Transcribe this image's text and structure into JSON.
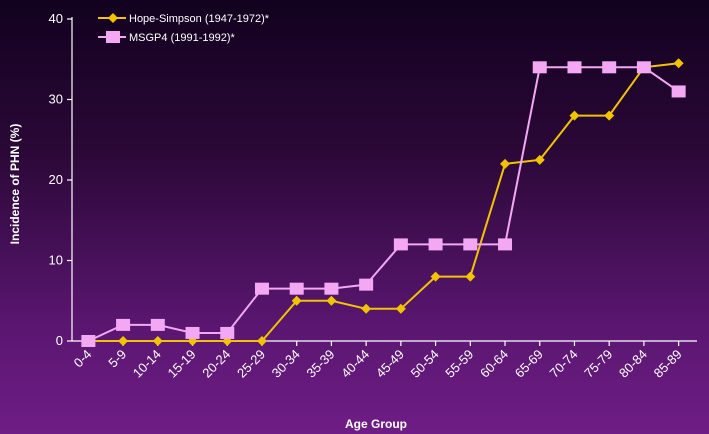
{
  "chart_data": {
    "type": "line",
    "xlabel": "Age Group",
    "ylabel": "Incidence of PHN (%)",
    "ylim": [
      0,
      40
    ],
    "yticks": [
      0,
      10,
      20,
      30,
      40
    ],
    "categories": [
      "0-4",
      "5-9",
      "10-14",
      "15-19",
      "20-24",
      "25-29",
      "30-34",
      "35-39",
      "40-44",
      "45-49",
      "50-54",
      "55-59",
      "60-64",
      "65-69",
      "70-74",
      "75-79",
      "80-84",
      "85-89"
    ],
    "series": [
      {
        "name": "Hope-Simpson (1947-1972)*",
        "color": "#f2c400",
        "marker": "diamond",
        "values": [
          0,
          0,
          0,
          0,
          0,
          0,
          5,
          5,
          4,
          4,
          8,
          8,
          22,
          22.5,
          28,
          28,
          34,
          34.5
        ]
      },
      {
        "name": "MSGP4 (1991-1992)*",
        "color": "#f4a8f4",
        "marker": "square",
        "values": [
          0,
          2,
          2,
          1,
          1,
          6.5,
          6.5,
          6.5,
          7,
          12,
          12,
          12,
          12,
          34,
          34,
          34,
          34,
          31
        ]
      }
    ],
    "grid": false,
    "legend": "top-left"
  }
}
